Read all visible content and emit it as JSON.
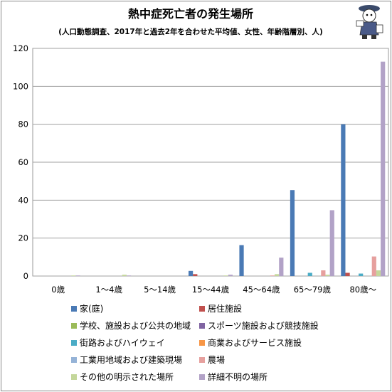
{
  "chart_data": {
    "type": "bar",
    "title": "熱中症死亡者の発生場所",
    "subtitle": "(人口動態調査、2017年と過去2年を合わせた平均値、女性、年齢階層別、人)",
    "categories": [
      "0歳",
      "1〜4歳",
      "5〜14歳",
      "15〜44歳",
      "45〜64歳",
      "65〜79歳",
      "80歳〜"
    ],
    "ylim": [
      0,
      120
    ],
    "yticks": [
      "0",
      "20",
      "40",
      "60",
      "80",
      "100",
      "120"
    ],
    "ytick_values": [
      0,
      20,
      40,
      60,
      80,
      100,
      120
    ],
    "grid": true,
    "legend_position": "bottom",
    "series": [
      {
        "name": "家(庭)",
        "color": "#4a7ab5",
        "values": [
          0,
          0,
          0,
          2.7,
          16.3,
          45.3,
          80.0
        ]
      },
      {
        "name": "居住施設",
        "color": "#c0504d",
        "values": [
          0,
          0,
          0,
          1.0,
          0,
          0,
          1.7
        ]
      },
      {
        "name": "学校、施設および公共の地域",
        "color": "#9bbb59",
        "values": [
          0,
          0,
          0,
          0,
          0,
          0,
          0
        ]
      },
      {
        "name": "スポーツ施設および競技施設",
        "color": "#8064a2",
        "values": [
          0,
          0,
          0,
          0,
          0,
          0,
          0
        ]
      },
      {
        "name": "街路およびハイウェイ",
        "color": "#4bacc6",
        "values": [
          0,
          0,
          0,
          0,
          0,
          1.7,
          1.3
        ]
      },
      {
        "name": "商業およびサービス施設",
        "color": "#f79646",
        "values": [
          0,
          0,
          0,
          0,
          0,
          0,
          0
        ]
      },
      {
        "name": "工業用地域および建築現場",
        "color": "#95b3d7",
        "values": [
          0,
          0,
          0,
          0,
          0,
          0,
          0
        ]
      },
      {
        "name": "農場",
        "color": "#e6a09e",
        "values": [
          0,
          0,
          0,
          0,
          0.3,
          3.0,
          10.3
        ]
      },
      {
        "name": "その他の明示された場所",
        "color": "#c4d79b",
        "values": [
          0.3,
          0.7,
          0,
          0.3,
          1.0,
          0.7,
          3.0
        ]
      },
      {
        "name": "詳細不明の場所",
        "color": "#b2a2c7",
        "values": [
          0.3,
          0.3,
          0,
          0.7,
          9.7,
          34.7,
          113.0
        ]
      }
    ]
  },
  "mascot_icon": "reporter-character-icon"
}
